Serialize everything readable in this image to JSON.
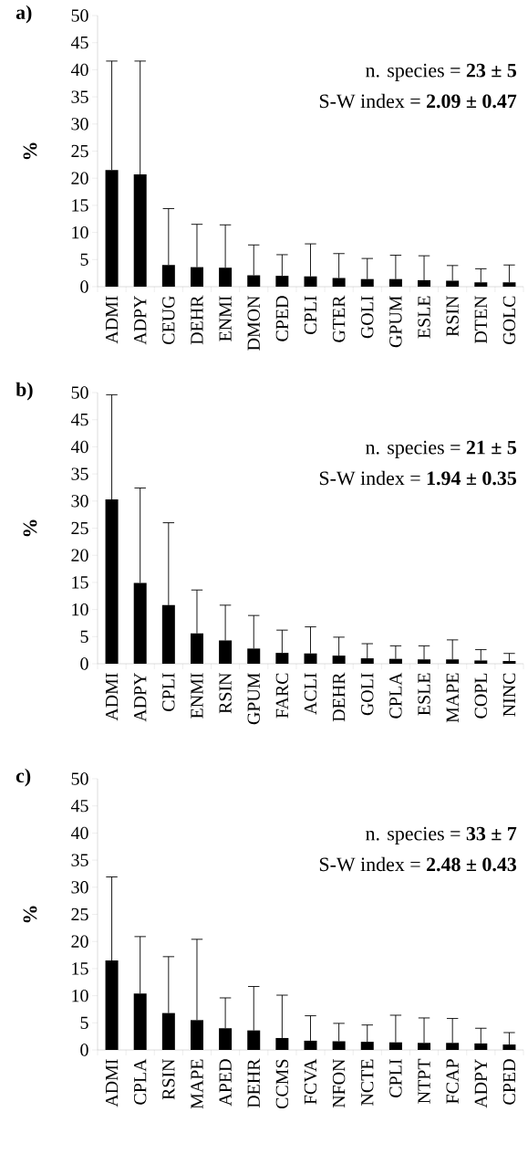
{
  "chart_data": [
    {
      "type": "bar",
      "title": "a)",
      "ylabel": "%",
      "color": "#000000",
      "ylim": [
        0,
        50
      ],
      "yticks": [
        0,
        5,
        10,
        15,
        20,
        25,
        30,
        35,
        40,
        45,
        50
      ],
      "grid": false,
      "categories": [
        "ADMI",
        "ADPY",
        "CEUG",
        "DEHR",
        "ENMI",
        "DMON",
        "CPED",
        "CPLI",
        "GTER",
        "GOLI",
        "GPUM",
        "ESLE",
        "RSIN",
        "DTEN",
        "GOLC"
      ],
      "values": [
        21.5,
        20.7,
        4.0,
        3.6,
        3.5,
        2.1,
        2.0,
        1.9,
        1.6,
        1.4,
        1.4,
        1.2,
        1.1,
        0.8,
        0.8
      ],
      "errors": [
        [
          21.5,
          41.6
        ],
        [
          20.7,
          41.6
        ],
        [
          4.0,
          14.4
        ],
        [
          3.6,
          11.5
        ],
        [
          3.5,
          11.4
        ],
        [
          2.1,
          7.7
        ],
        [
          2.0,
          5.9
        ],
        [
          1.9,
          7.9
        ],
        [
          1.6,
          6.1
        ],
        [
          1.4,
          5.2
        ],
        [
          1.4,
          5.8
        ],
        [
          1.2,
          5.7
        ],
        [
          1.1,
          3.9
        ],
        [
          0.8,
          3.3
        ],
        [
          0.8,
          4.0
        ]
      ],
      "annotations": [
        "n. species = **23 ± 5**",
        "S-W index = **2.09 ± 0.47**"
      ]
    },
    {
      "type": "bar",
      "title": "b)",
      "ylabel": "%",
      "color": "#000000",
      "ylim": [
        0,
        50
      ],
      "yticks": [
        0,
        5,
        10,
        15,
        20,
        25,
        30,
        35,
        40,
        45,
        50
      ],
      "grid": false,
      "categories": [
        "ADMI",
        "ADPY",
        "CPLI",
        "ENMI",
        "RSIN",
        "GPUM",
        "FARC",
        "ACLI",
        "DEHR",
        "GOLI",
        "CPLA",
        "ESLE",
        "MAPE",
        "COPL",
        "NINC"
      ],
      "values": [
        30.3,
        14.9,
        10.8,
        5.6,
        4.3,
        2.8,
        2.0,
        1.9,
        1.5,
        1.0,
        0.9,
        0.8,
        0.8,
        0.6,
        0.5
      ],
      "errors": [
        [
          30.3,
          49.6
        ],
        [
          14.9,
          32.4
        ],
        [
          10.8,
          26.0
        ],
        [
          5.6,
          13.6
        ],
        [
          4.3,
          10.8
        ],
        [
          2.8,
          8.9
        ],
        [
          2.0,
          6.2
        ],
        [
          1.9,
          6.8
        ],
        [
          1.5,
          4.9
        ],
        [
          1.0,
          3.7
        ],
        [
          0.9,
          3.3
        ],
        [
          0.8,
          3.3
        ],
        [
          0.8,
          4.4
        ],
        [
          0.6,
          2.6
        ],
        [
          0.5,
          1.9
        ]
      ],
      "annotations": [
        "n. species = **21 ± 5**",
        "S-W index = **1.94 ± 0.35**"
      ]
    },
    {
      "type": "bar",
      "title": "c)",
      "ylabel": "%",
      "color": "#000000",
      "ylim": [
        0,
        50
      ],
      "yticks": [
        0,
        5,
        10,
        15,
        20,
        25,
        30,
        35,
        40,
        45,
        50
      ],
      "grid": false,
      "categories": [
        "ADMI",
        "CPLA",
        "RSIN",
        "MAPE",
        "APED",
        "DEHR",
        "CCMS",
        "FCVA",
        "NFON",
        "NCTE",
        "CPLI",
        "NTPT",
        "FCAP",
        "ADPY",
        "CPED"
      ],
      "values": [
        16.5,
        10.4,
        6.8,
        5.5,
        4.0,
        3.6,
        2.2,
        1.7,
        1.6,
        1.5,
        1.4,
        1.3,
        1.3,
        1.2,
        1.0
      ],
      "errors": [
        [
          16.5,
          31.9
        ],
        [
          10.4,
          20.9
        ],
        [
          6.8,
          17.2
        ],
        [
          5.5,
          20.4
        ],
        [
          4.0,
          9.6
        ],
        [
          3.6,
          11.7
        ],
        [
          2.2,
          10.1
        ],
        [
          1.7,
          6.3
        ],
        [
          1.6,
          4.9
        ],
        [
          1.5,
          4.6
        ],
        [
          1.4,
          6.4
        ],
        [
          1.3,
          5.9
        ],
        [
          1.3,
          5.8
        ],
        [
          1.2,
          4.0
        ],
        [
          1.0,
          3.2
        ]
      ],
      "annotations": [
        "n. species = **33 ± 7**",
        "S-W index = **2.48 ± 0.43**"
      ]
    }
  ]
}
